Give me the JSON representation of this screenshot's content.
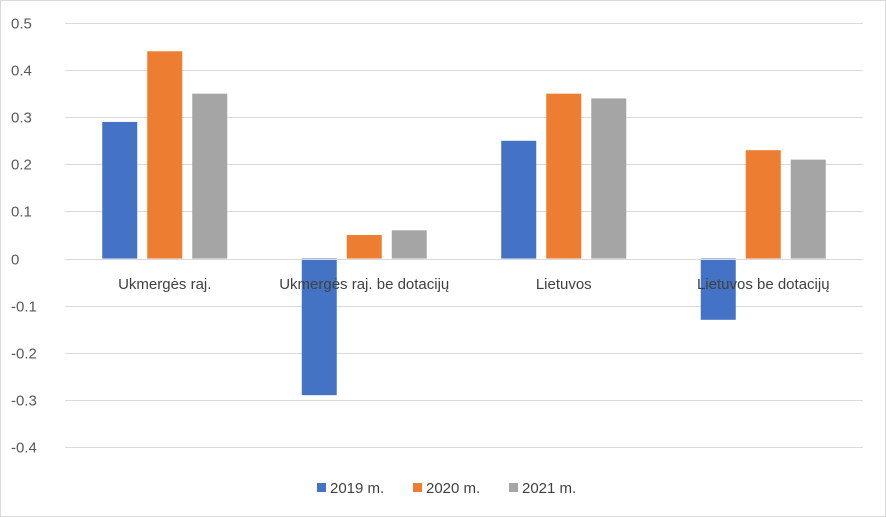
{
  "chart_data": {
    "type": "bar",
    "title": "",
    "xlabel": "",
    "ylabel": "",
    "categories": [
      "Ukmergės raj.",
      "Ukmergės raj. be dotacijų",
      "Lietuvos",
      "Lietuvos be dotacijų"
    ],
    "series": [
      {
        "name": "2019 m.",
        "color": "#4472C4",
        "values": [
          0.29,
          -0.29,
          0.25,
          -0.13
        ]
      },
      {
        "name": "2020 m.",
        "color": "#ED7D31",
        "values": [
          0.44,
          0.05,
          0.35,
          0.23
        ]
      },
      {
        "name": "2021 m.",
        "color": "#A5A5A5",
        "values": [
          0.35,
          0.06,
          0.34,
          0.21
        ]
      }
    ],
    "ylim": [
      -0.4,
      0.5
    ],
    "yticks": [
      0.5,
      0.4,
      0.3,
      0.2,
      0.1,
      0,
      -0.1,
      -0.2,
      -0.3,
      -0.4
    ],
    "ytick_labels": [
      "0.5",
      "0.4",
      "0.3",
      "0.2",
      "0.1",
      "0",
      "-0.1",
      "-0.2",
      "-0.3",
      "-0.4"
    ],
    "grid": true,
    "legend_position": "bottom"
  }
}
